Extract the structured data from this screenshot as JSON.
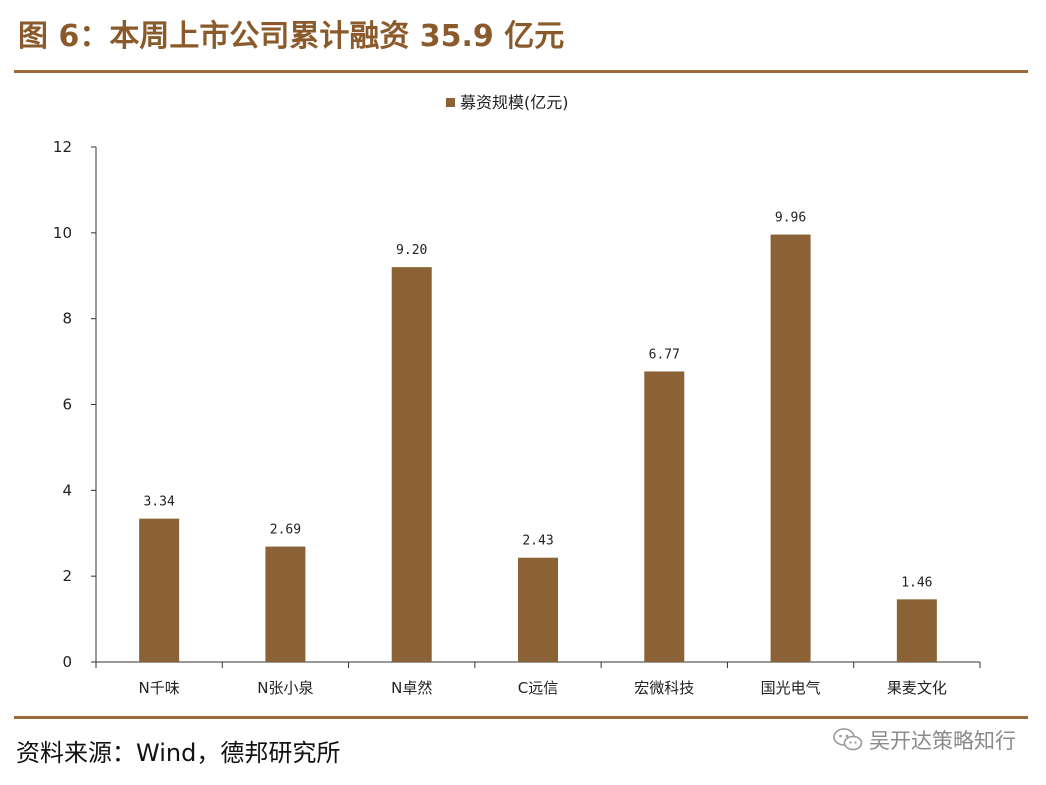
{
  "header": {
    "title": "图 6：本周上市公司累计融资 35.9 亿元"
  },
  "footer": {
    "source": "资料来源：Wind，德邦研究所",
    "watermark": "吴开达策略知行"
  },
  "colors": {
    "bar": "#8b6236",
    "rule": "#9a6a3b",
    "title": "#8a5a2b"
  },
  "icons": {
    "watermark_icon": "wechat-icon"
  },
  "chart_data": {
    "type": "bar",
    "title": "",
    "xlabel": "",
    "ylabel": "",
    "legend": {
      "entries": [
        "募资规模(亿元)"
      ],
      "position": "top-center"
    },
    "categories": [
      "N千味",
      "N张小泉",
      "N卓然",
      "C远信",
      "宏微科技",
      "国光电气",
      "果麦文化"
    ],
    "series": [
      {
        "name": "募资规模(亿元)",
        "values": [
          3.34,
          2.69,
          9.2,
          2.43,
          6.77,
          9.96,
          1.46
        ],
        "data_labels": [
          "3.34",
          "2.69",
          "9.20",
          "2.43",
          "6.77",
          "9.96",
          "1.46"
        ]
      }
    ],
    "ylim": [
      0,
      12
    ],
    "yticks": [
      "0",
      "2",
      "4",
      "6",
      "8",
      "10",
      "12"
    ],
    "grid": false
  }
}
